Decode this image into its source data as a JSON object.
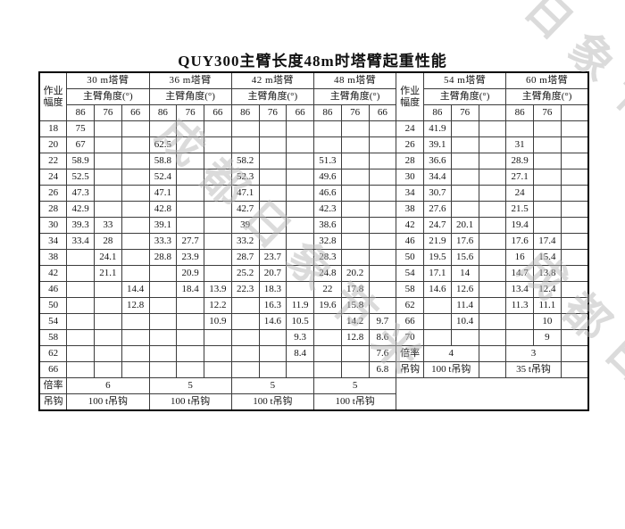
{
  "title": "QUY300主臂长度48m时塔臂起重性能",
  "watermark": {
    "text": "成都日象节米"
  },
  "colors": {
    "watermark": "#b9b9b9",
    "border": "#3c3c3c",
    "outer_border": "#000000",
    "background": "#ffffff"
  },
  "table": {
    "radius_header": "作业幅度",
    "angle_header": "主臂角度(°)",
    "ratio_label": "倍率",
    "hook_label": "吊钩",
    "left_sections": [
      {
        "name": "30 m塔臂",
        "angles": [
          "86",
          "76",
          "66"
        ]
      },
      {
        "name": "36 m塔臂",
        "angles": [
          "86",
          "76",
          "66"
        ]
      },
      {
        "name": "42 m塔臂",
        "angles": [
          "86",
          "76",
          "66"
        ]
      },
      {
        "name": "48 m塔臂",
        "angles": [
          "86",
          "76",
          "66"
        ]
      }
    ],
    "right_sections": [
      {
        "name": "54 m塔臂",
        "angles": [
          "86",
          "76",
          ""
        ]
      },
      {
        "name": "60 m塔臂",
        "angles": [
          "86",
          "76",
          ""
        ]
      }
    ],
    "left_rows": [
      {
        "radius": "18",
        "values": [
          "75",
          "",
          "",
          "",
          "",
          "",
          "",
          "",
          "",
          "",
          "",
          ""
        ]
      },
      {
        "radius": "20",
        "values": [
          "67",
          "",
          "",
          "62.5",
          "",
          "",
          "",
          "",
          "",
          "",
          "",
          ""
        ]
      },
      {
        "radius": "22",
        "values": [
          "58.9",
          "",
          "",
          "58.8",
          "",
          "",
          "58.2",
          "",
          "",
          "51.3",
          "",
          ""
        ]
      },
      {
        "radius": "24",
        "values": [
          "52.5",
          "",
          "",
          "52.4",
          "",
          "",
          "52.3",
          "",
          "",
          "49.6",
          "",
          ""
        ]
      },
      {
        "radius": "26",
        "values": [
          "47.3",
          "",
          "",
          "47.1",
          "",
          "",
          "47.1",
          "",
          "",
          "46.6",
          "",
          ""
        ]
      },
      {
        "radius": "28",
        "values": [
          "42.9",
          "",
          "",
          "42.8",
          "",
          "",
          "42.7",
          "",
          "",
          "42.3",
          "",
          ""
        ]
      },
      {
        "radius": "30",
        "values": [
          "39.3",
          "33",
          "",
          "39.1",
          "",
          "",
          "39",
          "",
          "",
          "38.6",
          "",
          ""
        ]
      },
      {
        "radius": "34",
        "values": [
          "33.4",
          "28",
          "",
          "33.3",
          "27.7",
          "",
          "33.2",
          "",
          "",
          "32.8",
          "",
          ""
        ]
      },
      {
        "radius": "38",
        "values": [
          "",
          "24.1",
          "",
          "28.8",
          "23.9",
          "",
          "28.7",
          "23.7",
          "",
          "28.3",
          "",
          ""
        ]
      },
      {
        "radius": "42",
        "values": [
          "",
          "21.1",
          "",
          "",
          "20.9",
          "",
          "25.2",
          "20.7",
          "",
          "24.8",
          "20.2",
          ""
        ]
      },
      {
        "radius": "46",
        "values": [
          "",
          "",
          "14.4",
          "",
          "18.4",
          "13.9",
          "22.3",
          "18.3",
          "",
          "22",
          "17.8",
          ""
        ]
      },
      {
        "radius": "50",
        "values": [
          "",
          "",
          "12.8",
          "",
          "",
          "12.2",
          "",
          "16.3",
          "11.9",
          "19.6",
          "15.8",
          ""
        ]
      },
      {
        "radius": "54",
        "values": [
          "",
          "",
          "",
          "",
          "",
          "10.9",
          "",
          "14.6",
          "10.5",
          "",
          "14.2",
          "9.7"
        ]
      },
      {
        "radius": "58",
        "values": [
          "",
          "",
          "",
          "",
          "",
          "",
          "",
          "",
          "9.3",
          "",
          "12.8",
          "8.6"
        ]
      },
      {
        "radius": "62",
        "values": [
          "",
          "",
          "",
          "",
          "",
          "",
          "",
          "",
          "8.4",
          "",
          "",
          "7.6"
        ]
      },
      {
        "radius": "66",
        "values": [
          "",
          "",
          "",
          "",
          "",
          "",
          "",
          "",
          "",
          "",
          "",
          "6.8"
        ]
      }
    ],
    "left_ratios": [
      "6",
      "5",
      "5",
      "5"
    ],
    "left_hooks": [
      "100 t吊钩",
      "100 t吊钩",
      "100 t吊钩",
      "100 t吊钩"
    ],
    "right_rows": [
      {
        "radius": "24",
        "values": [
          "41.9",
          "",
          "",
          "",
          "",
          ""
        ]
      },
      {
        "radius": "26",
        "values": [
          "39.1",
          "",
          "",
          "31",
          "",
          ""
        ]
      },
      {
        "radius": "28",
        "values": [
          "36.6",
          "",
          "",
          "28.9",
          "",
          ""
        ]
      },
      {
        "radius": "30",
        "values": [
          "34.4",
          "",
          "",
          "27.1",
          "",
          ""
        ]
      },
      {
        "radius": "34",
        "values": [
          "30.7",
          "",
          "",
          "24",
          "",
          ""
        ]
      },
      {
        "radius": "38",
        "values": [
          "27.6",
          "",
          "",
          "21.5",
          "",
          ""
        ]
      },
      {
        "radius": "42",
        "values": [
          "24.7",
          "20.1",
          "",
          "19.4",
          "",
          ""
        ]
      },
      {
        "radius": "46",
        "values": [
          "21.9",
          "17.6",
          "",
          "17.6",
          "17.4",
          ""
        ]
      },
      {
        "radius": "50",
        "values": [
          "19.5",
          "15.6",
          "",
          "16",
          "15.4",
          ""
        ]
      },
      {
        "radius": "54",
        "values": [
          "17.1",
          "14",
          "",
          "14.7",
          "13.8",
          ""
        ]
      },
      {
        "radius": "58",
        "values": [
          "14.6",
          "12.6",
          "",
          "13.4",
          "12.4",
          ""
        ]
      },
      {
        "radius": "62",
        "values": [
          "",
          "11.4",
          "",
          "11.3",
          "11.1",
          ""
        ]
      },
      {
        "radius": "66",
        "values": [
          "",
          "10.4",
          "",
          "",
          "10",
          ""
        ]
      },
      {
        "radius": "70",
        "values": [
          "",
          "",
          "",
          "",
          "9",
          ""
        ]
      }
    ],
    "right_ratios": [
      "4",
      "3"
    ],
    "right_hooks": [
      "100 t吊钩",
      "35 t吊钩"
    ]
  }
}
